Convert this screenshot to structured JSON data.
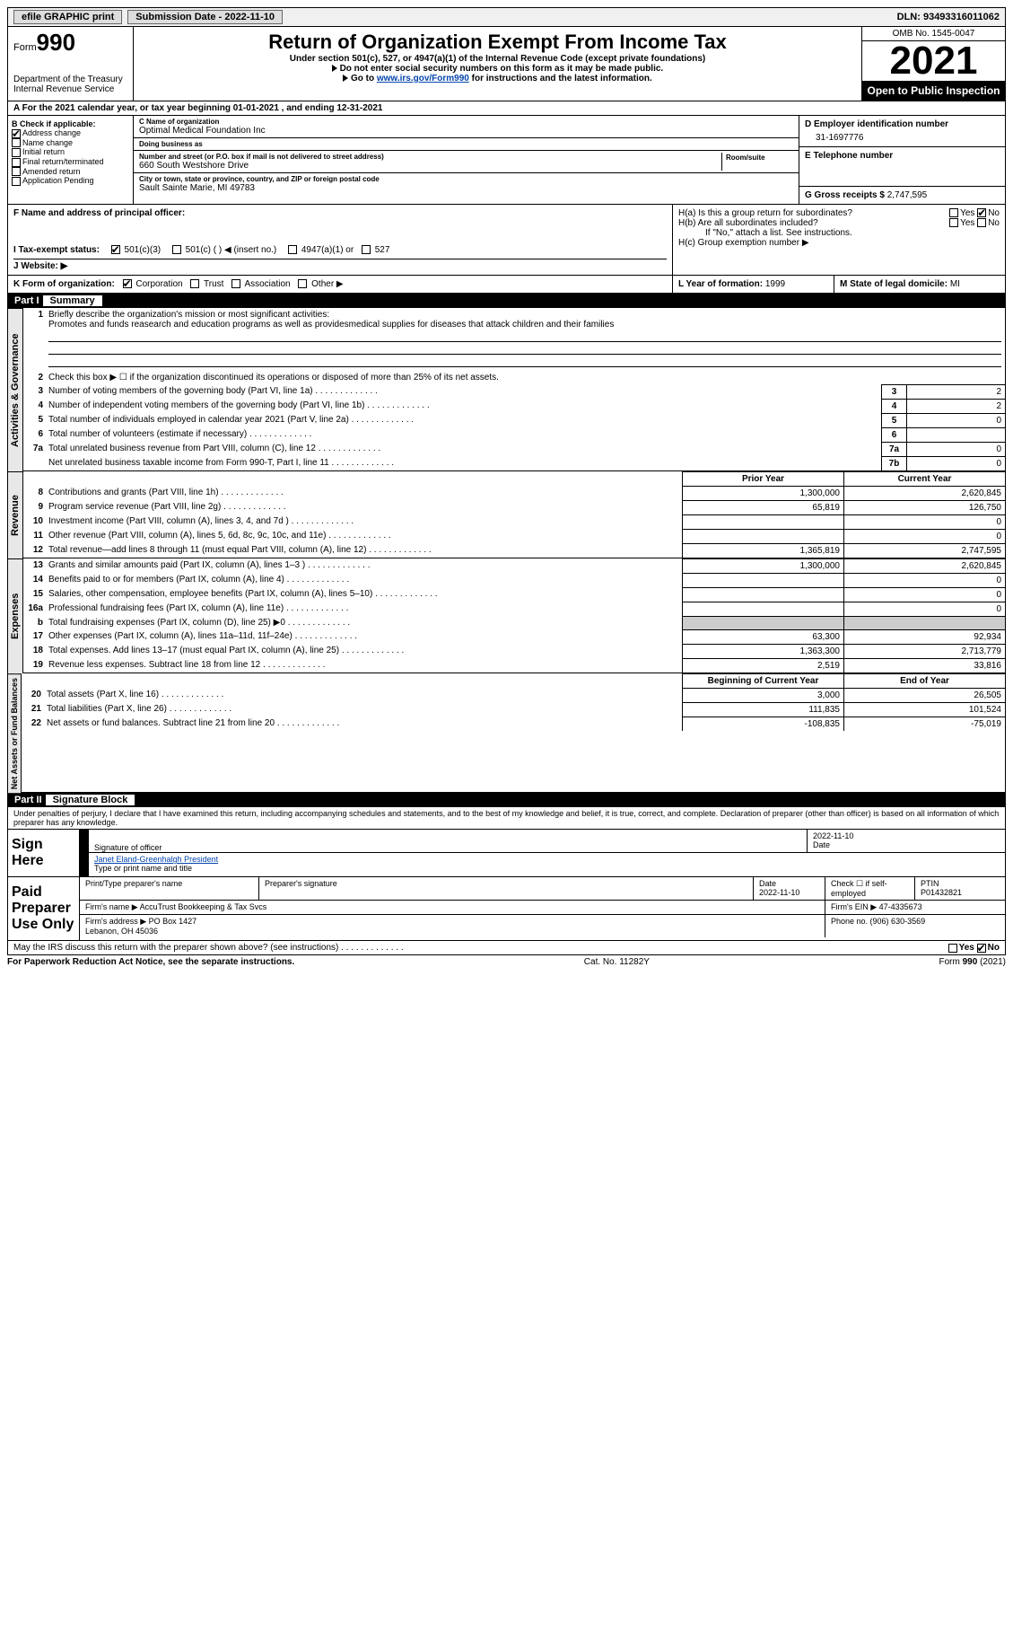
{
  "topbar": {
    "btn1": "efile GRAPHIC print",
    "submission_label": "Submission Date - ",
    "submission_date": "2022-11-10",
    "dln_label": "DLN: ",
    "dln": "93493316011062"
  },
  "header": {
    "form_label": "Form",
    "form_no": "990",
    "dept": "Department of the Treasury\nInternal Revenue Service",
    "title": "Return of Organization Exempt From Income Tax",
    "subtitle": "Under section 501(c), 527, or 4947(a)(1) of the Internal Revenue Code (except private foundations)",
    "note1": "Do not enter social security numbers on this form as it may be made public.",
    "note2_a": "Go to ",
    "note2_link": "www.irs.gov/Form990",
    "note2_b": " for instructions and the latest information.",
    "omb": "OMB No. 1545-0047",
    "year": "2021",
    "inspection": "Open to Public Inspection"
  },
  "rowA": {
    "text_a": "A For the 2021 calendar year, or tax year beginning ",
    "begin": "01-01-2021",
    "text_b": " , and ending ",
    "end": "12-31-2021"
  },
  "colB": {
    "heading": "B Check if applicable:",
    "opts": [
      "Address change",
      "Name change",
      "Initial return",
      "Final return/terminated",
      "Amended return",
      "Application Pending"
    ],
    "checked_idx": 0
  },
  "colC": {
    "name_label": "C Name of organization",
    "name": "Optimal Medical Foundation Inc",
    "dba_label": "Doing business as",
    "addr_label": "Number and street (or P.O. box if mail is not delivered to street address)",
    "room_label": "Room/suite",
    "addr": "660 South Westshore Drive",
    "city_label": "City or town, state or province, country, and ZIP or foreign postal code",
    "city": "Sault Sainte Marie, MI  49783"
  },
  "colD": {
    "ein_label": "D Employer identification number",
    "ein": "31-1697776",
    "phone_label": "E Telephone number",
    "gross_label": "G Gross receipts $ ",
    "gross": "2,747,595"
  },
  "rowF": {
    "label": "F Name and address of principal officer:"
  },
  "rowH": {
    "a": "H(a)  Is this a group return for subordinates?",
    "b": "H(b)  Are all subordinates included?",
    "b_note": "If \"No,\" attach a list. See instructions.",
    "c": "H(c)  Group exemption number ▶",
    "yes": "Yes",
    "no": "No"
  },
  "rowI": {
    "label": "I  Tax-exempt status:",
    "opts": [
      "501(c)(3)",
      "501(c) (  ) ◀ (insert no.)",
      "4947(a)(1) or",
      "527"
    ]
  },
  "rowJ": {
    "label": "J  Website: ▶"
  },
  "rowK": {
    "label": "K Form of organization:",
    "opts": [
      "Corporation",
      "Trust",
      "Association",
      "Other ▶"
    ],
    "L_label": "L Year of formation: ",
    "L_val": "1999",
    "M_label": "M State of legal domicile: ",
    "M_val": "MI"
  },
  "part1": {
    "num": "Part I",
    "title": "Summary"
  },
  "summary": {
    "line1_label": "Briefly describe the organization's mission or most significant activities:",
    "line1_text": "Promotes and funds reasearch and education programs as well as providesmedical supplies for diseases that attack children and their families",
    "line2": "Check this box ▶ ☐ if the organization discontinued its operations or disposed of more than 25% of its net assets.",
    "rows_a": [
      {
        "n": "3",
        "t": "Number of voting members of the governing body (Part VI, line 1a)",
        "box": "3",
        "v": "2"
      },
      {
        "n": "4",
        "t": "Number of independent voting members of the governing body (Part VI, line 1b)",
        "box": "4",
        "v": "2"
      },
      {
        "n": "5",
        "t": "Total number of individuals employed in calendar year 2021 (Part V, line 2a)",
        "box": "5",
        "v": "0"
      },
      {
        "n": "6",
        "t": "Total number of volunteers (estimate if necessary)",
        "box": "6",
        "v": ""
      },
      {
        "n": "7a",
        "t": "Total unrelated business revenue from Part VIII, column (C), line 12",
        "box": "7a",
        "v": "0"
      },
      {
        "n": "",
        "t": "Net unrelated business taxable income from Form 990-T, Part I, line 11",
        "box": "7b",
        "v": "0"
      }
    ],
    "col_prior": "Prior Year",
    "col_current": "Current Year",
    "revenue_rows": [
      {
        "n": "8",
        "t": "Contributions and grants (Part VIII, line 1h)",
        "p": "1,300,000",
        "c": "2,620,845"
      },
      {
        "n": "9",
        "t": "Program service revenue (Part VIII, line 2g)",
        "p": "65,819",
        "c": "126,750"
      },
      {
        "n": "10",
        "t": "Investment income (Part VIII, column (A), lines 3, 4, and 7d )",
        "p": "",
        "c": "0"
      },
      {
        "n": "11",
        "t": "Other revenue (Part VIII, column (A), lines 5, 6d, 8c, 9c, 10c, and 11e)",
        "p": "",
        "c": "0"
      },
      {
        "n": "12",
        "t": "Total revenue—add lines 8 through 11 (must equal Part VIII, column (A), line 12)",
        "p": "1,365,819",
        "c": "2,747,595"
      }
    ],
    "expense_rows": [
      {
        "n": "13",
        "t": "Grants and similar amounts paid (Part IX, column (A), lines 1–3 )",
        "p": "1,300,000",
        "c": "2,620,845"
      },
      {
        "n": "14",
        "t": "Benefits paid to or for members (Part IX, column (A), line 4)",
        "p": "",
        "c": "0"
      },
      {
        "n": "15",
        "t": "Salaries, other compensation, employee benefits (Part IX, column (A), lines 5–10)",
        "p": "",
        "c": "0"
      },
      {
        "n": "16a",
        "t": "Professional fundraising fees (Part IX, column (A), line 11e)",
        "p": "",
        "c": "0"
      },
      {
        "n": "b",
        "t": "Total fundraising expenses (Part IX, column (D), line 25) ▶0",
        "p": "shade",
        "c": "shade"
      },
      {
        "n": "17",
        "t": "Other expenses (Part IX, column (A), lines 11a–11d, 11f–24e)",
        "p": "63,300",
        "c": "92,934"
      },
      {
        "n": "18",
        "t": "Total expenses. Add lines 13–17 (must equal Part IX, column (A), line 25)",
        "p": "1,363,300",
        "c": "2,713,779"
      },
      {
        "n": "19",
        "t": "Revenue less expenses. Subtract line 18 from line 12",
        "p": "2,519",
        "c": "33,816"
      }
    ],
    "col_begin": "Beginning of Current Year",
    "col_end": "End of Year",
    "netassets_rows": [
      {
        "n": "20",
        "t": "Total assets (Part X, line 16)",
        "p": "3,000",
        "c": "26,505"
      },
      {
        "n": "21",
        "t": "Total liabilities (Part X, line 26)",
        "p": "111,835",
        "c": "101,524"
      },
      {
        "n": "22",
        "t": "Net assets or fund balances. Subtract line 21 from line 20",
        "p": "-108,835",
        "c": "-75,019"
      }
    ]
  },
  "vert_labels": {
    "gov": "Activities & Governance",
    "rev": "Revenue",
    "exp": "Expenses",
    "net": "Net Assets or Fund Balances"
  },
  "part2": {
    "num": "Part II",
    "title": "Signature Block"
  },
  "sig": {
    "penalty": "Under penalties of perjury, I declare that I have examined this return, including accompanying schedules and statements, and to the best of my knowledge and belief, it is true, correct, and complete. Declaration of preparer (other than officer) is based on all information of which preparer has any knowledge.",
    "sign_here": "Sign Here",
    "sig_officer": "Signature of officer",
    "date": "Date",
    "sig_date": "2022-11-10",
    "name_title": "Janet Eland-Greenhalgh  President",
    "name_label": "Type or print name and title",
    "paid": "Paid Preparer Use Only",
    "prep_name_label": "Print/Type preparer's name",
    "prep_sig_label": "Preparer's signature",
    "date_label": "Date",
    "prep_date": "2022-11-10",
    "check_label": "Check ☐ if self-employed",
    "ptin_label": "PTIN",
    "ptin": "P01432821",
    "firm_name_label": "Firm's name   ▶ ",
    "firm_name": "AccuTrust Bookkeeping & Tax Svcs",
    "firm_ein_label": "Firm's EIN ▶ ",
    "firm_ein": "47-4335673",
    "firm_addr_label": "Firm's address ▶ ",
    "firm_addr": "PO Box 1427\nLebanon, OH  45036",
    "firm_phone_label": "Phone no. ",
    "firm_phone": "(906) 630-3569",
    "discuss": "May the IRS discuss this return with the preparer shown above? (see instructions)"
  },
  "footer": {
    "left": "For Paperwork Reduction Act Notice, see the separate instructions.",
    "mid": "Cat. No. 11282Y",
    "right": "Form 990 (2021)"
  }
}
